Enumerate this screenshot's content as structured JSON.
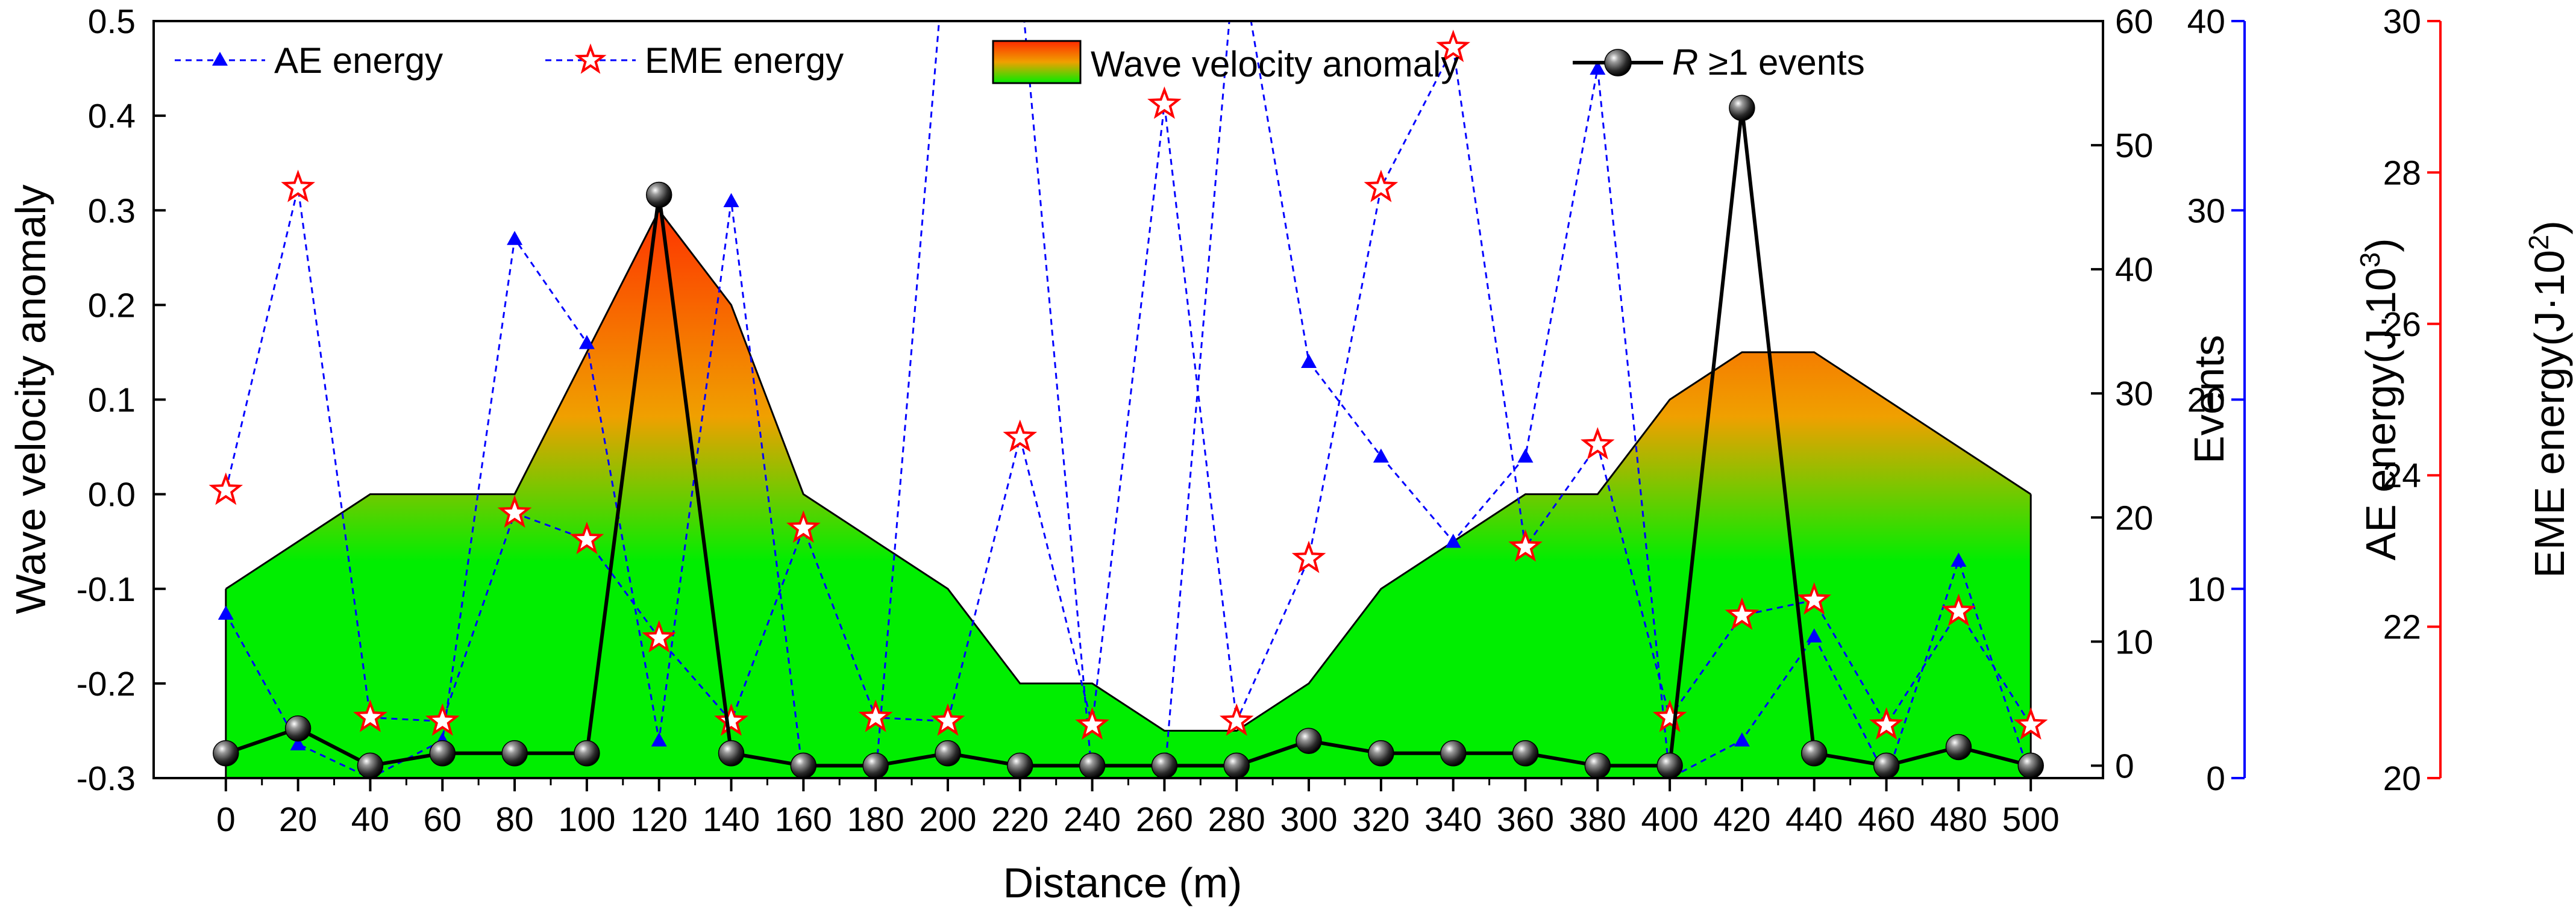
{
  "chart_data": {
    "type": "line",
    "xlabel": "Distance (m)",
    "x": [
      0,
      20,
      40,
      60,
      80,
      100,
      120,
      140,
      160,
      180,
      200,
      220,
      240,
      260,
      280,
      300,
      320,
      340,
      360,
      380,
      400,
      420,
      440,
      460,
      480,
      500
    ],
    "x_ticks": [
      0,
      20,
      40,
      60,
      80,
      100,
      120,
      140,
      160,
      180,
      200,
      220,
      240,
      260,
      280,
      300,
      320,
      340,
      360,
      380,
      400,
      420,
      440,
      460,
      480,
      500
    ],
    "xlim": [
      -20,
      520
    ],
    "axes": {
      "left": {
        "label": "Wave velocity anomaly",
        "ylim": [
          -0.3,
          0.5
        ],
        "ticks": [
          "-0.3",
          "-0.2",
          "-0.1",
          "0.0",
          "0.1",
          "0.2",
          "0.3",
          "0.4",
          "0.5"
        ],
        "color": "#000000"
      },
      "right_events": {
        "label": "Events",
        "ylim": [
          -1,
          60
        ],
        "ticks": [
          "0",
          "10",
          "20",
          "30",
          "40",
          "50",
          "60"
        ],
        "color": "#000000"
      },
      "right_ae": {
        "label_main": "AE energy(J·10",
        "label_sup": "3",
        "label_end": ")",
        "ylim": [
          0,
          40
        ],
        "ticks": [
          "0",
          "10",
          "20",
          "30",
          "40"
        ],
        "color": "#0000ff"
      },
      "right_eme": {
        "label_main": "EME energy(J·10",
        "label_sup": "2",
        "label_end": ")",
        "ylim": [
          20,
          30
        ],
        "ticks": [
          "20",
          "22",
          "24",
          "26",
          "28",
          "30"
        ],
        "color": "#ff0000"
      }
    },
    "legend": {
      "position": "top",
      "ae": "AE energy",
      "eme": "EME energy",
      "wave": "Wave velocity anomaly",
      "events_prefix": "R",
      "events_suffix": " ≥1 events"
    },
    "series": [
      {
        "name": "Wave velocity anomaly",
        "axis": "left",
        "style": "filled-area",
        "values": [
          -0.1,
          -0.05,
          0.0,
          0.0,
          0.0,
          0.15,
          0.3,
          0.2,
          0.0,
          -0.05,
          -0.1,
          -0.2,
          -0.2,
          -0.25,
          -0.25,
          -0.2,
          -0.1,
          -0.05,
          0.0,
          0.0,
          0.1,
          0.15,
          0.15,
          0.1,
          0.05,
          0.0
        ],
        "colors": {
          "high": "#ff2a00",
          "mid": "#f0a000",
          "low": "#00ee00"
        }
      },
      {
        "name": "AE energy",
        "axis": "right_ae",
        "color": "#0000ff",
        "style": "dashed-triangle",
        "values": [
          8.7,
          1.8,
          0.0,
          2.0,
          28.5,
          23.0,
          2.0,
          30.5,
          0.0,
          0.0,
          45.5,
          42.5,
          0.0,
          0.0,
          44.5,
          22.0,
          17.0,
          12.5,
          17.0,
          37.5,
          0.0,
          2.0,
          7.5,
          0.0,
          11.5,
          0.0
        ],
        "values_axis_note": "values in AE axis units where 40 is top of scale"
      },
      {
        "name": "EME energy",
        "axis": "right_eme",
        "color": "#ff0000",
        "style": "dashed-star",
        "values": [
          23.8,
          27.8,
          20.8,
          20.75,
          23.5,
          23.15,
          21.85,
          20.75,
          23.3,
          20.8,
          20.75,
          24.5,
          20.7,
          28.9,
          20.75,
          22.9,
          27.8,
          29.65,
          23.05,
          24.4,
          20.8,
          22.15,
          22.35,
          20.7,
          22.2,
          20.7
        ]
      },
      {
        "name": "R ≥1 events",
        "axis": "right_events",
        "color": "#000000",
        "style": "solid-sphere",
        "values": [
          1,
          3,
          0,
          1,
          1,
          1,
          46,
          1,
          0,
          0,
          1,
          0,
          0,
          0,
          0,
          2,
          1,
          1,
          1,
          0,
          0,
          53,
          1,
          0,
          1.5,
          0
        ]
      }
    ]
  }
}
